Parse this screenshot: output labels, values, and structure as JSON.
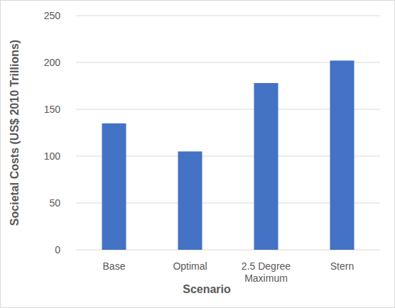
{
  "chart_data": {
    "type": "bar",
    "x_label": "Scenario",
    "y_label": "Societal Costs (US$ 2010 Trillions)",
    "categories": [
      "Base",
      "Optimal",
      "2.5 Degree Maximum",
      "Stern"
    ],
    "values": [
      135,
      105,
      178,
      202
    ],
    "color": "#4472c4",
    "ylim": [
      0,
      250
    ],
    "yticks": [
      0,
      50,
      100,
      150,
      200,
      250
    ],
    "grid": true
  }
}
